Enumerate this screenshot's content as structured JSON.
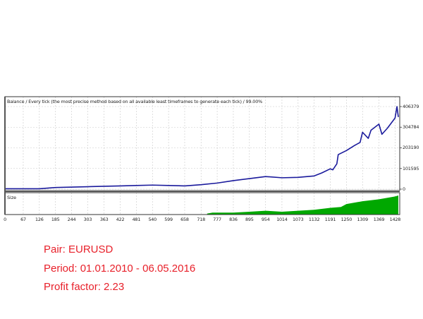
{
  "chart_data": {
    "type": "line",
    "title": "Balance / Every tick (the most precise method based on all available least timeframes to generate each tick) / 99.00%",
    "xlabel": "",
    "ylabel": "",
    "ylim": [
      0,
      406379
    ],
    "yticks": [
      "406379",
      "304784",
      "203190",
      "101595",
      "0"
    ],
    "xticks": [
      "0",
      "67",
      "126",
      "185",
      "244",
      "303",
      "363",
      "422",
      "481",
      "540",
      "599",
      "658",
      "718",
      "777",
      "836",
      "895",
      "954",
      "1014",
      "1073",
      "1132",
      "1191",
      "1250",
      "1309",
      "1369",
      "1428"
    ],
    "grid": true,
    "series": [
      {
        "name": "Balance",
        "color": "#1a1a9c",
        "x": [
          0,
          126,
          185,
          303,
          363,
          422,
          481,
          540,
          599,
          658,
          718,
          777,
          836,
          895,
          954,
          1014,
          1073,
          1132,
          1160,
          1191,
          1200,
          1215,
          1220,
          1250,
          1280,
          1300,
          1309,
          1330,
          1340,
          1369,
          1380,
          1400,
          1428,
          1435,
          1440
        ],
        "values": [
          2000,
          2000,
          8000,
          12000,
          14000,
          16000,
          18000,
          20000,
          18000,
          16000,
          22000,
          30000,
          42000,
          52000,
          62000,
          56000,
          58000,
          65000,
          80000,
          100000,
          95000,
          125000,
          170000,
          190000,
          215000,
          230000,
          280000,
          250000,
          290000,
          320000,
          270000,
          300000,
          350000,
          406379,
          355000
        ]
      }
    ],
    "sub_panel": {
      "label": "Size",
      "type": "area",
      "color": "#00a800",
      "x": [
        740,
        760,
        836,
        895,
        954,
        1014,
        1073,
        1132,
        1191,
        1230,
        1250,
        1309,
        1369,
        1428,
        1440
      ],
      "values": [
        0.05,
        0.1,
        0.1,
        0.15,
        0.2,
        0.15,
        0.2,
        0.25,
        0.35,
        0.4,
        0.55,
        0.7,
        0.8,
        0.95,
        1.0
      ]
    }
  },
  "info": {
    "pair": "Pair: EURUSD",
    "period": "Period: 01.01.2010 - 06.05.2016",
    "profit_factor": "Profit factor: 2.23"
  }
}
